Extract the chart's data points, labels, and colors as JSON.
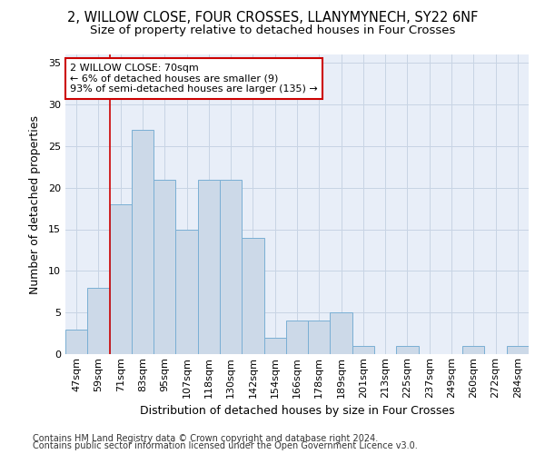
{
  "title1": "2, WILLOW CLOSE, FOUR CROSSES, LLANYMYNECH, SY22 6NF",
  "title2": "Size of property relative to detached houses in Four Crosses",
  "xlabel": "Distribution of detached houses by size in Four Crosses",
  "ylabel": "Number of detached properties",
  "categories": [
    "47sqm",
    "59sqm",
    "71sqm",
    "83sqm",
    "95sqm",
    "107sqm",
    "118sqm",
    "130sqm",
    "142sqm",
    "154sqm",
    "166sqm",
    "178sqm",
    "189sqm",
    "201sqm",
    "213sqm",
    "225sqm",
    "237sqm",
    "249sqm",
    "260sqm",
    "272sqm",
    "284sqm"
  ],
  "values": [
    3,
    8,
    18,
    27,
    21,
    15,
    21,
    21,
    14,
    2,
    4,
    4,
    5,
    1,
    0,
    1,
    0,
    0,
    1,
    0,
    1
  ],
  "bar_color": "#ccd9e8",
  "bar_edge_color": "#7aafd4",
  "vline_color": "#cc0000",
  "vline_x": 2.0,
  "annotation_text": "2 WILLOW CLOSE: 70sqm\n← 6% of detached houses are smaller (9)\n93% of semi-detached houses are larger (135) →",
  "annotation_box_facecolor": "#ffffff",
  "annotation_box_edgecolor": "#cc0000",
  "yticks": [
    0,
    5,
    10,
    15,
    20,
    25,
    30,
    35
  ],
  "ylim": [
    0,
    36
  ],
  "grid_color": "#c8d4e4",
  "background_color": "#e8eef8",
  "footer1": "Contains HM Land Registry data © Crown copyright and database right 2024.",
  "footer2": "Contains public sector information licensed under the Open Government Licence v3.0.",
  "title1_fontsize": 10.5,
  "title2_fontsize": 9.5,
  "xlabel_fontsize": 9,
  "ylabel_fontsize": 9,
  "tick_fontsize": 8,
  "footer_fontsize": 7,
  "annot_fontsize": 8
}
